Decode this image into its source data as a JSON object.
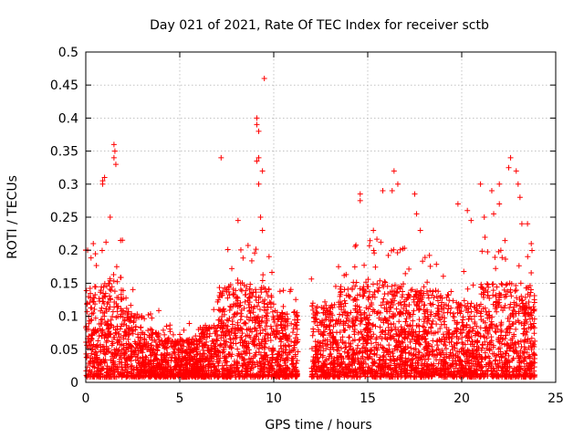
{
  "chart_data": {
    "type": "scatter",
    "title": "Day 021 of 2021, Rate Of TEC Index for receiver sctb",
    "xlabel": "GPS time / hours",
    "ylabel": "ROTI / TECUs",
    "xlim": [
      0,
      25
    ],
    "ylim": [
      0,
      0.5
    ],
    "xticks": [
      "0",
      "5",
      "10",
      "15",
      "20",
      "25"
    ],
    "yticks": [
      "0",
      "0.05",
      "0.1",
      "0.15",
      "0.2",
      "0.25",
      "0.3",
      "0.35",
      "0.4",
      "0.45",
      "0.5"
    ],
    "grid": true,
    "marker": "+",
    "marker_color": "#ff0000",
    "series": [
      {
        "name": "ROTI",
        "description": "dense point cloud (~5000 points) between 0 and ~0.2 TECU, with a data gap roughly 11.3–12.0 h",
        "envelope": [
          {
            "from": 0.0,
            "to": 1.0,
            "base": 0.06,
            "spread": 0.14
          },
          {
            "from": 1.0,
            "to": 2.0,
            "base": 0.07,
            "spread": 0.16
          },
          {
            "from": 2.0,
            "to": 3.0,
            "base": 0.05,
            "spread": 0.09
          },
          {
            "from": 3.0,
            "to": 4.0,
            "base": 0.04,
            "spread": 0.06
          },
          {
            "from": 4.0,
            "to": 6.0,
            "base": 0.03,
            "spread": 0.05
          },
          {
            "from": 6.0,
            "to": 7.0,
            "base": 0.04,
            "spread": 0.07
          },
          {
            "from": 7.0,
            "to": 8.5,
            "base": 0.06,
            "spread": 0.15
          },
          {
            "from": 8.5,
            "to": 10.0,
            "base": 0.06,
            "spread": 0.14
          },
          {
            "from": 10.0,
            "to": 11.3,
            "base": 0.05,
            "spread": 0.09
          },
          {
            "from": 12.0,
            "to": 13.5,
            "base": 0.05,
            "spread": 0.12
          },
          {
            "from": 13.5,
            "to": 15.0,
            "base": 0.06,
            "spread": 0.14
          },
          {
            "from": 15.0,
            "to": 17.0,
            "base": 0.06,
            "spread": 0.15
          },
          {
            "from": 17.0,
            "to": 19.5,
            "base": 0.06,
            "spread": 0.13
          },
          {
            "from": 19.5,
            "to": 21.0,
            "base": 0.05,
            "spread": 0.12
          },
          {
            "from": 21.0,
            "to": 23.9,
            "base": 0.06,
            "spread": 0.15
          }
        ],
        "outliers": [
          {
            "x": 0.0,
            "y": 0.2
          },
          {
            "x": 0.1,
            "y": 0.2
          },
          {
            "x": 0.4,
            "y": 0.21
          },
          {
            "x": 0.9,
            "y": 0.3
          },
          {
            "x": 0.9,
            "y": 0.305
          },
          {
            "x": 1.0,
            "y": 0.31
          },
          {
            "x": 1.5,
            "y": 0.36
          },
          {
            "x": 1.55,
            "y": 0.35
          },
          {
            "x": 1.6,
            "y": 0.33
          },
          {
            "x": 1.5,
            "y": 0.34
          },
          {
            "x": 1.3,
            "y": 0.25
          },
          {
            "x": 7.2,
            "y": 0.34
          },
          {
            "x": 8.1,
            "y": 0.245
          },
          {
            "x": 9.1,
            "y": 0.4
          },
          {
            "x": 9.1,
            "y": 0.39
          },
          {
            "x": 9.2,
            "y": 0.38
          },
          {
            "x": 9.1,
            "y": 0.335
          },
          {
            "x": 9.2,
            "y": 0.34
          },
          {
            "x": 9.2,
            "y": 0.3
          },
          {
            "x": 9.4,
            "y": 0.32
          },
          {
            "x": 9.5,
            "y": 0.46
          },
          {
            "x": 9.3,
            "y": 0.25
          },
          {
            "x": 9.4,
            "y": 0.23
          },
          {
            "x": 14.6,
            "y": 0.285
          },
          {
            "x": 14.6,
            "y": 0.275
          },
          {
            "x": 15.3,
            "y": 0.23
          },
          {
            "x": 15.8,
            "y": 0.29
          },
          {
            "x": 16.3,
            "y": 0.29
          },
          {
            "x": 16.4,
            "y": 0.32
          },
          {
            "x": 16.6,
            "y": 0.3
          },
          {
            "x": 17.5,
            "y": 0.285
          },
          {
            "x": 17.6,
            "y": 0.255
          },
          {
            "x": 17.8,
            "y": 0.23
          },
          {
            "x": 19.8,
            "y": 0.27
          },
          {
            "x": 20.3,
            "y": 0.26
          },
          {
            "x": 20.5,
            "y": 0.245
          },
          {
            "x": 21.0,
            "y": 0.3
          },
          {
            "x": 21.2,
            "y": 0.25
          },
          {
            "x": 21.6,
            "y": 0.29
          },
          {
            "x": 21.7,
            "y": 0.255
          },
          {
            "x": 22.0,
            "y": 0.3
          },
          {
            "x": 22.0,
            "y": 0.27
          },
          {
            "x": 22.6,
            "y": 0.34
          },
          {
            "x": 22.5,
            "y": 0.325
          },
          {
            "x": 22.9,
            "y": 0.32
          },
          {
            "x": 23.0,
            "y": 0.3
          },
          {
            "x": 23.1,
            "y": 0.28
          },
          {
            "x": 23.2,
            "y": 0.24
          },
          {
            "x": 23.5,
            "y": 0.24
          },
          {
            "x": 23.7,
            "y": 0.21
          }
        ]
      }
    ]
  }
}
